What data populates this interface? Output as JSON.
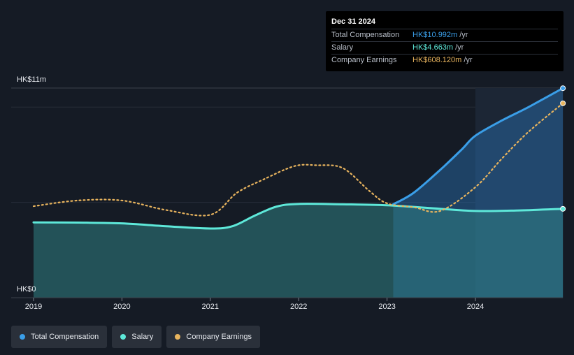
{
  "chart_data": {
    "type": "area",
    "title": "",
    "xlabel": "",
    "ylabel": "",
    "ylim": [
      0,
      11
    ],
    "y_tick_labels": [
      "HK$11m",
      "HK$0"
    ],
    "x_tick_labels": [
      "2019",
      "2020",
      "2021",
      "2022",
      "2023",
      "2024"
    ],
    "x_ticks": [
      2019,
      2020,
      2021,
      2022,
      2023,
      2024
    ],
    "xlim": [
      2018.75,
      2025.0
    ],
    "shaded_from": 2024.0,
    "legend_position": "bottom-left",
    "series": [
      {
        "name": "Total Compensation",
        "color": "#3a9ee8",
        "x": [
          2023.07,
          2023.3,
          2023.6,
          2023.85,
          2024.0,
          2024.3,
          2024.6,
          2024.99
        ],
        "values": [
          4.9,
          5.5,
          6.7,
          7.8,
          8.5,
          9.3,
          10.0,
          10.992
        ]
      },
      {
        "name": "Salary",
        "color": "#5ee8d9",
        "x": [
          2019.0,
          2019.5,
          2020.0,
          2020.5,
          2021.0,
          2021.25,
          2021.5,
          2021.75,
          2022.0,
          2022.5,
          2023.0,
          2023.5,
          2024.0,
          2024.5,
          2024.99
        ],
        "values": [
          3.95,
          3.94,
          3.9,
          3.75,
          3.63,
          3.75,
          4.3,
          4.78,
          4.92,
          4.9,
          4.85,
          4.7,
          4.55,
          4.58,
          4.663
        ]
      },
      {
        "name": "Company Earnings",
        "color": "#e8b45e",
        "x": [
          2019.0,
          2019.5,
          2020.0,
          2020.5,
          2021.0,
          2021.3,
          2021.6,
          2021.95,
          2022.2,
          2022.5,
          2022.8,
          2023.0,
          2023.3,
          2023.6,
          2024.0,
          2024.3,
          2024.6,
          2024.99
        ],
        "values": [
          4.8,
          5.1,
          5.1,
          4.6,
          4.35,
          5.5,
          6.2,
          6.9,
          6.95,
          6.8,
          5.6,
          4.95,
          4.75,
          4.55,
          5.8,
          7.3,
          8.7,
          10.2
        ]
      }
    ]
  },
  "tooltip": {
    "date": "Dec 31 2024",
    "rows": [
      {
        "name": "Total Compensation",
        "value": "HK$10.992m",
        "unit": "/yr",
        "color": "#3a9ee8"
      },
      {
        "name": "Salary",
        "value": "HK$4.663m",
        "unit": "/yr",
        "color": "#5ee8d9"
      },
      {
        "name": "Company Earnings",
        "value": "HK$608.120m",
        "unit": "/yr",
        "color": "#e8b45e"
      }
    ]
  },
  "legend": [
    {
      "label": "Total Compensation",
      "color": "#3a9ee8"
    },
    {
      "label": "Salary",
      "color": "#5ee8d9"
    },
    {
      "label": "Company Earnings",
      "color": "#e8b45e"
    }
  ]
}
